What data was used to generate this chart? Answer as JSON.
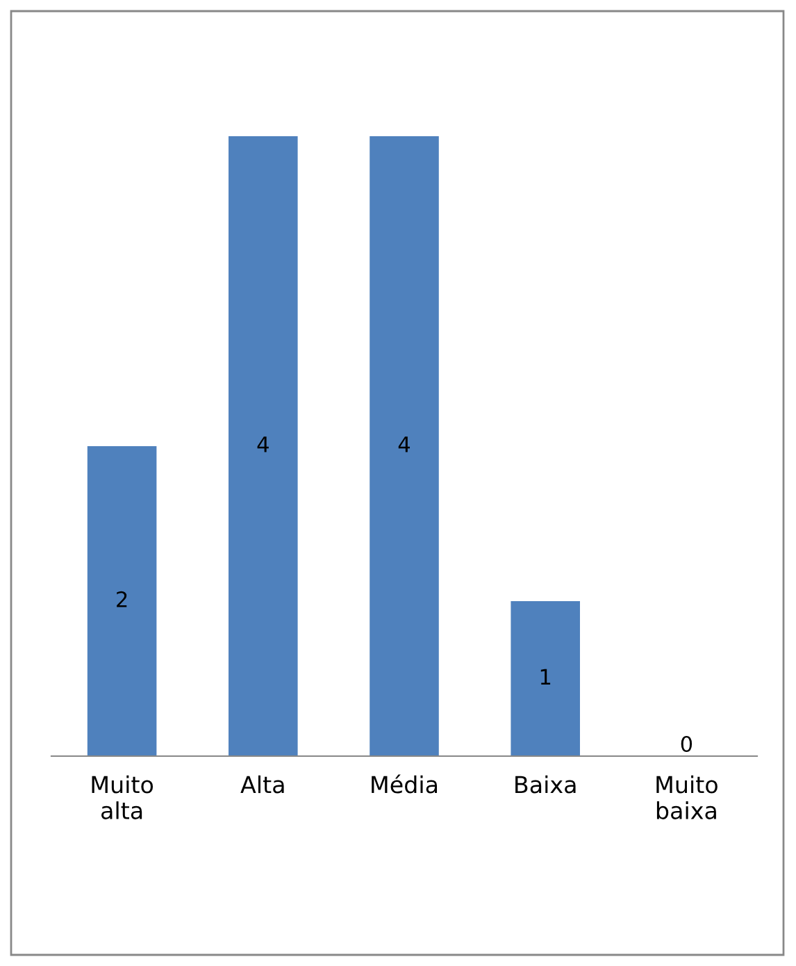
{
  "chart_data": {
    "type": "bar",
    "categories": [
      "Muito alta",
      "Alta",
      "Média",
      "Baixa",
      "Muito baixa"
    ],
    "values": [
      2,
      4,
      4,
      1,
      0
    ],
    "color": "#4f81bd",
    "ylim": [
      0,
      4
    ],
    "data_labels": true,
    "grid": false,
    "legend": false
  }
}
